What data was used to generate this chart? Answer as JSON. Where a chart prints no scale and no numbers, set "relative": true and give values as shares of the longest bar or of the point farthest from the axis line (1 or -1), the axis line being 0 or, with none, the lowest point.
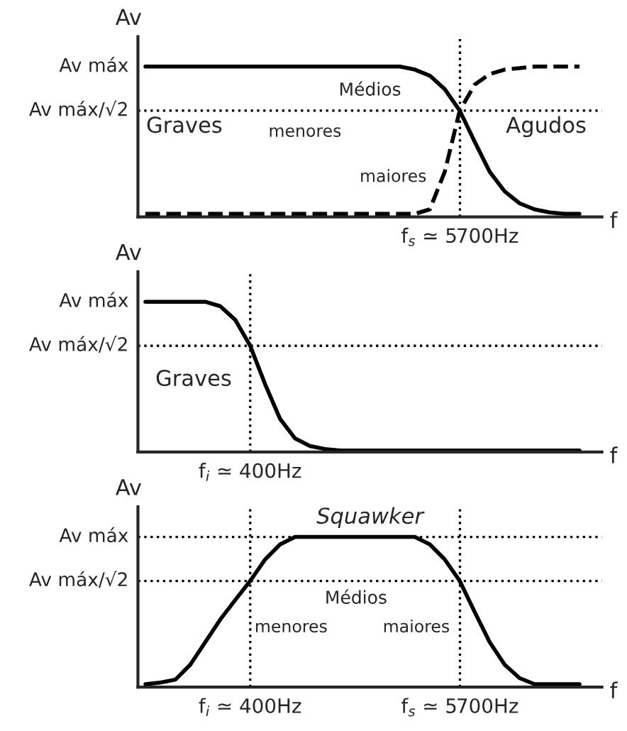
{
  "chart_data": [
    {
      "type": "line",
      "xlabel": "f",
      "ylabel": "Av",
      "relative": true,
      "grid": false,
      "legend": false,
      "marker": "none",
      "categories": [
        null,
        null,
        null,
        null,
        null,
        null,
        null,
        null,
        null,
        null,
        null,
        null,
        null,
        null,
        null,
        null,
        null,
        null,
        null,
        null,
        null,
        null,
        null,
        null,
        null,
        null,
        null,
        null,
        null,
        null,
        null
      ],
      "series": [
        {
          "color": "#000000",
          "line_style": "solid",
          "values": [
            1,
            1,
            1,
            1,
            1,
            1,
            1,
            1,
            1,
            1,
            1,
            1,
            1,
            1,
            1,
            1,
            1,
            1,
            0.98,
            0.94,
            0.85,
            0.707,
            0.5,
            0.3,
            0.17,
            0.09,
            0.05,
            0.03,
            0.02,
            0.02,
            null
          ]
        },
        {
          "color": "#000000",
          "line_style": "dashed",
          "values": [
            0.02,
            0.02,
            0.02,
            0.02,
            0.02,
            0.02,
            0.02,
            0.02,
            0.02,
            0.02,
            0.02,
            0.02,
            0.02,
            0.02,
            0.02,
            0.02,
            0.02,
            0.02,
            0.02,
            0.05,
            0.3,
            0.707,
            0.88,
            0.95,
            0.98,
            0.99,
            1,
            1,
            1,
            1,
            null
          ]
        }
      ],
      "annotations": [
        "Av máx",
        "Av máx/√2",
        "f$_{s}$ ≃ 5700Hz",
        "Graves",
        "Médios",
        "menores",
        "maiores",
        "Agudos"
      ]
    },
    {
      "type": "line",
      "xlabel": "f",
      "ylabel": "Av",
      "relative": true,
      "grid": false,
      "legend": false,
      "marker": "none",
      "categories": [
        null,
        null,
        null,
        null,
        null,
        null,
        null,
        null,
        null,
        null,
        null,
        null,
        null,
        null,
        null,
        null,
        null,
        null,
        null,
        null,
        null,
        null,
        null,
        null,
        null,
        null,
        null,
        null,
        null,
        null,
        null
      ],
      "series": [
        {
          "color": "#000000",
          "line_style": "solid",
          "values": [
            1,
            1,
            1,
            1,
            1,
            0.97,
            0.88,
            0.707,
            0.45,
            0.22,
            0.09,
            0.04,
            0.02,
            0.01,
            0.01,
            0.01,
            0.01,
            0.01,
            0.01,
            0.01,
            0.01,
            0.01,
            0.01,
            0.01,
            0.01,
            0.01,
            0.01,
            0.01,
            0.01,
            0.01,
            null
          ]
        }
      ],
      "annotations": [
        "Av máx",
        "Av máx/√2",
        "f$_{i}$ ≃ 400Hz",
        "Graves"
      ]
    },
    {
      "type": "line",
      "xlabel": "f",
      "ylabel": "Av",
      "relative": true,
      "grid": false,
      "legend": false,
      "marker": "none",
      "categories": [
        null,
        null,
        null,
        null,
        null,
        null,
        null,
        null,
        null,
        null,
        null,
        null,
        null,
        null,
        null,
        null,
        null,
        null,
        null,
        null,
        null,
        null,
        null,
        null,
        null,
        null,
        null,
        null,
        null,
        null,
        null
      ],
      "series": [
        {
          "color": "#000000",
          "line_style": "solid",
          "values": [
            0.02,
            0.03,
            0.05,
            0.15,
            0.3,
            0.45,
            0.58,
            0.707,
            0.85,
            0.95,
            1,
            1,
            1,
            1,
            1,
            1,
            1,
            1,
            1,
            0.95,
            0.85,
            0.707,
            0.5,
            0.3,
            0.15,
            0.06,
            0.02,
            0.02,
            0.02,
            0.02,
            null
          ]
        }
      ],
      "annotations": [
        "Av máx",
        "Av máx/√2",
        "f$_{i}$ ≃ 400Hz",
        "f$_{s}$ ≃ 5700Hz",
        "Squawker",
        "Médios",
        "menores",
        "maiores"
      ]
    }
  ]
}
